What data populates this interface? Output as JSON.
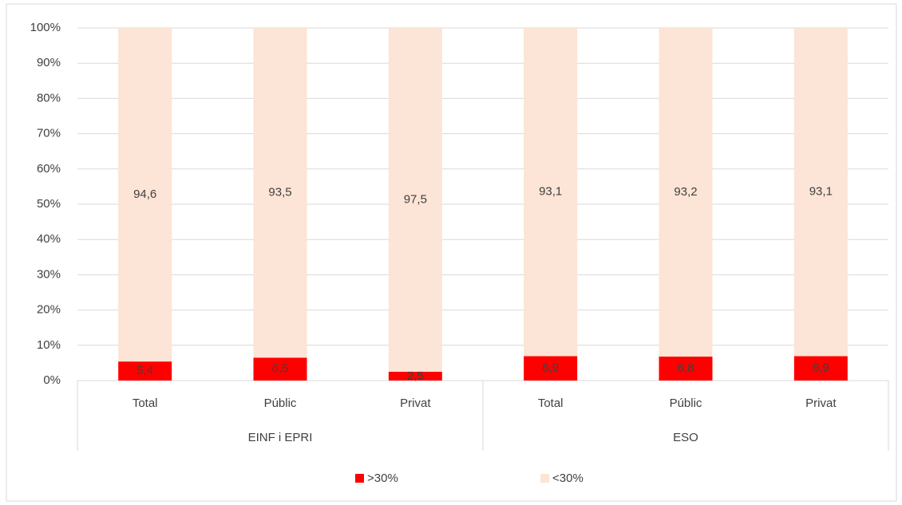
{
  "chart_data": {
    "type": "stacked_bar_100",
    "categories": [
      "Total",
      "Públic",
      "Privat",
      "Total",
      "Públic",
      "Privat"
    ],
    "group_labels": [
      "EINF i EPRI",
      "ESO"
    ],
    "series": [
      {
        "name": ">30%",
        "color": "#ff0000",
        "values": [
          5.4,
          6.5,
          2.5,
          6.9,
          6.8,
          6.9
        ],
        "value_labels": [
          "5,4",
          "6,5",
          "2,5",
          "6,9",
          "6,8",
          "6,9"
        ]
      },
      {
        "name": "<30%",
        "color": "#fce4d6",
        "values": [
          94.6,
          93.5,
          97.5,
          93.1,
          93.2,
          93.1
        ],
        "value_labels": [
          "94,6",
          "93,5",
          "97,5",
          "93,1",
          "93,2",
          "93,1"
        ]
      }
    ],
    "ylim": [
      0,
      100
    ],
    "yticks": [
      {
        "value": 0,
        "label": "0%"
      },
      {
        "value": 10,
        "label": "10%"
      },
      {
        "value": 20,
        "label": "20%"
      },
      {
        "value": 30,
        "label": "30%"
      },
      {
        "value": 40,
        "label": "40%"
      },
      {
        "value": 50,
        "label": "50%"
      },
      {
        "value": 60,
        "label": "60%"
      },
      {
        "value": 70,
        "label": "70%"
      },
      {
        "value": 80,
        "label": "80%"
      },
      {
        "value": 90,
        "label": "90%"
      },
      {
        "value": 100,
        "label": "100%"
      }
    ],
    "grid": true,
    "legend": "bottom"
  }
}
